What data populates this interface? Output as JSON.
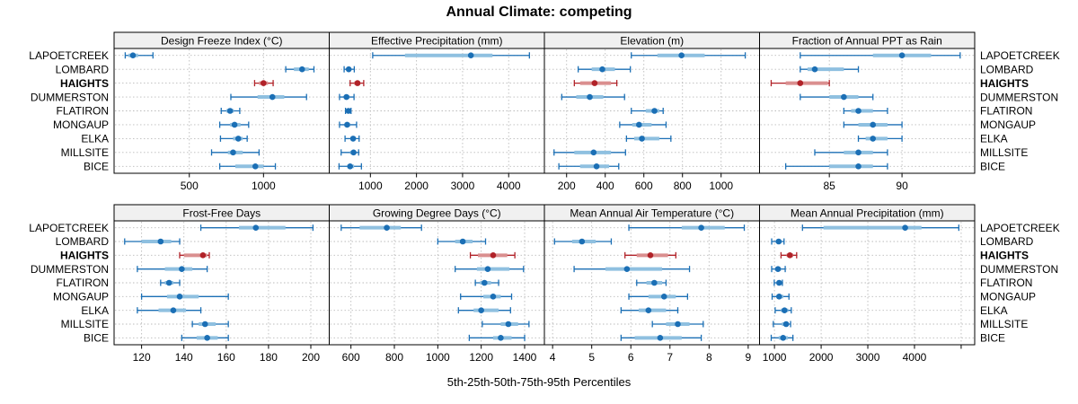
{
  "title": "Annual Climate: competing",
  "caption": "5th-25th-50th-75th-95th Percentiles",
  "colors": {
    "normal": "#1B6FB5",
    "normal_band": "#8FC0E0",
    "highlight": "#B12228",
    "highlight_band": "#DA8F8F",
    "strip_bg": "#F0F0F0",
    "panel_border": "#000000",
    "grid": "#BBBBBB",
    "text": "#000000"
  },
  "chart_data": {
    "type": "trellis-dotplot",
    "percentiles": [
      5,
      25,
      50,
      75,
      95
    ],
    "legend_note": "each row shows 5th-95th whisker, 25th-75th band, 50th dot",
    "stations": [
      "LAPOETCREEK",
      "LOMBARD",
      "HAIGHTS",
      "DUMMERSTON",
      "FLATIRON",
      "MONGAUP",
      "ELKA",
      "MILLSITE",
      "BICE"
    ],
    "highlight_station": "HAIGHTS",
    "highlight_index": 2,
    "panels": [
      {
        "title": "Design Freeze Index (°C)",
        "row": 0,
        "col": 0,
        "xlim": [
          -7,
          1443
        ],
        "ticks": [
          500,
          1000
        ],
        "grid_ticks": [
          500,
          1000
        ],
        "series": [
          [
            68,
            90,
            120,
            155,
            255
          ],
          [
            1150,
            1205,
            1260,
            1305,
            1340
          ],
          [
            940,
            970,
            1000,
            1030,
            1065
          ],
          [
            780,
            960,
            1060,
            1140,
            1290
          ],
          [
            715,
            750,
            775,
            800,
            840
          ],
          [
            705,
            775,
            805,
            845,
            900
          ],
          [
            710,
            795,
            830,
            860,
            890
          ],
          [
            650,
            760,
            795,
            860,
            970
          ],
          [
            705,
            810,
            945,
            1000,
            1080
          ]
        ]
      },
      {
        "title": "Effective Precipitation (mm)",
        "row": 0,
        "col": 1,
        "xlim": [
          107,
          4775
        ],
        "ticks": [
          1000,
          2000,
          3000,
          4000
        ],
        "grid_ticks": [
          1000,
          2000,
          3000,
          4000
        ],
        "series": [
          [
            1050,
            1750,
            3180,
            3650,
            4450
          ],
          [
            430,
            500,
            530,
            570,
            650
          ],
          [
            560,
            650,
            720,
            780,
            855
          ],
          [
            330,
            430,
            480,
            545,
            645
          ],
          [
            460,
            500,
            525,
            550,
            580
          ],
          [
            330,
            450,
            495,
            560,
            700
          ],
          [
            450,
            570,
            625,
            680,
            755
          ],
          [
            365,
            560,
            635,
            690,
            745
          ],
          [
            320,
            500,
            560,
            645,
            805
          ]
        ]
      },
      {
        "title": "Elevation (m)",
        "row": 0,
        "col": 2,
        "xlim": [
          85,
          1199
        ],
        "ticks": [
          200,
          400,
          600,
          800,
          1000
        ],
        "grid_ticks": [
          200,
          400,
          600,
          800,
          1000
        ],
        "series": [
          [
            535,
            670,
            795,
            915,
            1125
          ],
          [
            260,
            330,
            385,
            450,
            530
          ],
          [
            240,
            270,
            345,
            430,
            460
          ],
          [
            175,
            250,
            320,
            390,
            500
          ],
          [
            535,
            610,
            655,
            680,
            700
          ],
          [
            475,
            540,
            575,
            640,
            715
          ],
          [
            510,
            550,
            590,
            680,
            740
          ],
          [
            135,
            240,
            340,
            430,
            505
          ],
          [
            160,
            270,
            355,
            420,
            470
          ]
        ]
      },
      {
        "title": "Fraction of Annual PPT as Rain",
        "row": 0,
        "col": 3,
        "xlim": [
          80.2,
          95
        ],
        "ticks": [
          85,
          90
        ],
        "grid_ticks": [
          85,
          90
        ],
        "series": [
          [
            83,
            88,
            90,
            92,
            94
          ],
          [
            83,
            83.5,
            84,
            86,
            87
          ],
          [
            81,
            82,
            83,
            84.9,
            85
          ],
          [
            83,
            85,
            86,
            87,
            88
          ],
          [
            86,
            86.5,
            87,
            88,
            89
          ],
          [
            86,
            87,
            88,
            89,
            90
          ],
          [
            87,
            87.5,
            88,
            89,
            90
          ],
          [
            84,
            86,
            87,
            88,
            89
          ],
          [
            82,
            85,
            87,
            88,
            89
          ]
        ]
      },
      {
        "title": "Frost-Free Days",
        "row": 1,
        "col": 0,
        "xlim": [
          107,
          208.7
        ],
        "ticks": [
          120,
          140,
          160,
          180,
          200
        ],
        "grid_ticks": [
          120,
          140,
          160,
          180,
          200
        ],
        "series": [
          [
            148,
            166,
            174,
            188,
            201
          ],
          [
            112,
            120,
            129,
            134,
            138
          ],
          [
            138,
            140,
            149,
            151,
            152
          ],
          [
            118,
            131,
            139,
            144,
            151
          ],
          [
            129,
            131,
            133,
            135,
            138
          ],
          [
            120,
            132,
            138,
            147,
            161
          ],
          [
            118,
            128,
            135,
            141,
            148
          ],
          [
            144,
            147,
            150,
            155,
            161
          ],
          [
            139,
            146,
            151,
            156,
            161
          ]
        ]
      },
      {
        "title": "Growing Degree Days (°C)",
        "row": 1,
        "col": 1,
        "xlim": [
          500,
          1491
        ],
        "ticks": [
          600,
          800,
          1000,
          1200,
          1400
        ],
        "grid_ticks": [
          600,
          800,
          1000,
          1200,
          1400
        ],
        "series": [
          [
            555,
            640,
            765,
            830,
            925
          ],
          [
            1000,
            1080,
            1115,
            1160,
            1220
          ],
          [
            1150,
            1185,
            1255,
            1320,
            1355
          ],
          [
            1080,
            1180,
            1230,
            1330,
            1395
          ],
          [
            1173,
            1195,
            1215,
            1245,
            1280
          ],
          [
            1105,
            1210,
            1255,
            1290,
            1340
          ],
          [
            1095,
            1165,
            1200,
            1280,
            1335
          ],
          [
            1205,
            1290,
            1325,
            1370,
            1420
          ],
          [
            1145,
            1255,
            1290,
            1340,
            1400
          ]
        ]
      },
      {
        "title": "Mean Annual Air Temperature (°C)",
        "row": 1,
        "col": 2,
        "xlim": [
          3.79,
          9.29
        ],
        "ticks": [
          4,
          5,
          6,
          7,
          8,
          9
        ],
        "grid_ticks": [
          4,
          5,
          6,
          7,
          8,
          9
        ],
        "series": [
          [
            5.95,
            7.3,
            7.8,
            8.4,
            8.9
          ],
          [
            4.05,
            4.5,
            4.75,
            5.1,
            5.5
          ],
          [
            5.85,
            6.15,
            6.5,
            6.95,
            7.15
          ],
          [
            4.55,
            5.35,
            5.9,
            6.8,
            7.5
          ],
          [
            6.15,
            6.4,
            6.6,
            6.8,
            6.9
          ],
          [
            5.95,
            6.45,
            6.85,
            7.15,
            7.45
          ],
          [
            5.75,
            6.2,
            6.45,
            6.9,
            7.2
          ],
          [
            6.55,
            6.9,
            7.2,
            7.5,
            7.85
          ],
          [
            5.75,
            6.1,
            6.75,
            7.3,
            7.8
          ]
        ]
      },
      {
        "title": "Mean Annual Precipitation (mm)",
        "row": 1,
        "col": 3,
        "xlim": [
          680,
          5290
        ],
        "ticks": [
          1000,
          2000,
          3000,
          4000
        ],
        "grid_ticks": [
          1000,
          2000,
          3000,
          4000,
          5000
        ],
        "series": [
          [
            1600,
            2050,
            3800,
            4150,
            4950
          ],
          [
            940,
            1030,
            1090,
            1150,
            1205
          ],
          [
            1140,
            1260,
            1330,
            1400,
            1475
          ],
          [
            940,
            1010,
            1075,
            1140,
            1230
          ],
          [
            995,
            1050,
            1100,
            1140,
            1170
          ],
          [
            950,
            1040,
            1100,
            1190,
            1310
          ],
          [
            1015,
            1140,
            1215,
            1295,
            1360
          ],
          [
            975,
            1160,
            1250,
            1305,
            1345
          ],
          [
            930,
            1090,
            1185,
            1285,
            1395
          ]
        ]
      }
    ]
  }
}
